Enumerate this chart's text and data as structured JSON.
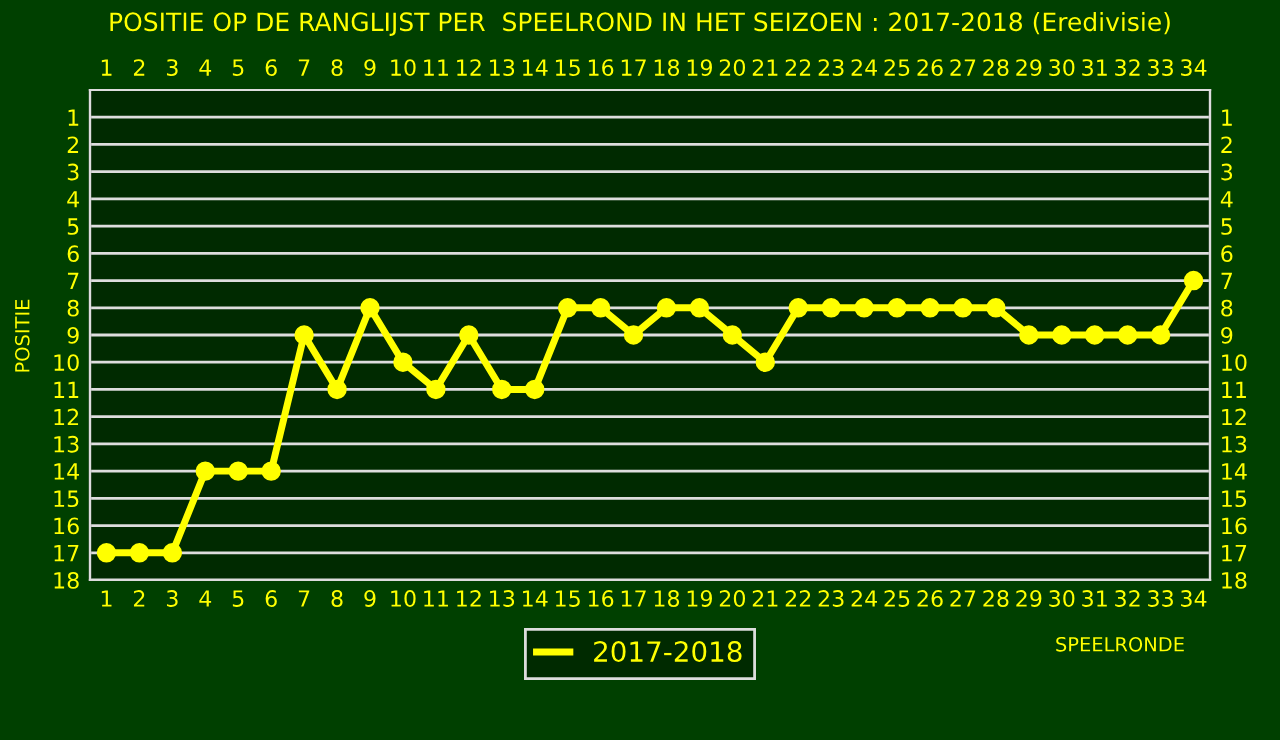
{
  "chart_data": {
    "type": "line",
    "title": "POSITIE OP DE RANGLIJST PER  SPEELROND IN HET SEIZOEN : 2017-2018 (Eredivisie)",
    "xlabel": "SPEELRONDE",
    "ylabel": "POSITIE",
    "x": [
      1,
      2,
      3,
      4,
      5,
      6,
      7,
      8,
      9,
      10,
      11,
      12,
      13,
      14,
      15,
      16,
      17,
      18,
      19,
      20,
      21,
      22,
      23,
      24,
      25,
      26,
      27,
      28,
      29,
      30,
      31,
      32,
      33,
      34
    ],
    "series": [
      {
        "name": "2017-2018",
        "color": "#ffff00",
        "values": [
          17,
          17,
          17,
          14,
          14,
          14,
          9,
          11,
          8,
          10,
          11,
          9,
          11,
          11,
          8,
          8,
          9,
          8,
          8,
          9,
          10,
          8,
          8,
          8,
          8,
          8,
          8,
          8,
          9,
          9,
          9,
          9,
          9,
          7
        ]
      }
    ],
    "xlim": [
      0.5,
      34.5
    ],
    "xticks": [
      1,
      2,
      3,
      4,
      5,
      6,
      7,
      8,
      9,
      10,
      11,
      12,
      13,
      14,
      15,
      16,
      17,
      18,
      19,
      20,
      21,
      22,
      23,
      24,
      25,
      26,
      27,
      28,
      29,
      30,
      31,
      32,
      33,
      34
    ],
    "x2lim": [
      0.5,
      34.5
    ],
    "x2ticks": [
      1,
      2,
      3,
      4,
      5,
      6,
      7,
      8,
      9,
      10,
      11,
      12,
      13,
      14,
      15,
      16,
      17,
      18,
      19,
      20,
      21,
      22,
      23,
      24,
      25,
      26,
      27,
      28,
      29,
      30,
      31,
      32,
      33,
      34
    ],
    "ylim": [
      18,
      0
    ],
    "yticks": [
      1,
      2,
      3,
      4,
      5,
      6,
      7,
      8,
      9,
      10,
      11,
      12,
      13,
      14,
      15,
      16,
      17,
      18
    ],
    "y2lim": [
      18,
      0
    ],
    "y2ticks": [
      1,
      2,
      3,
      4,
      5,
      6,
      7,
      8,
      9,
      10,
      11,
      12,
      13,
      14,
      15,
      16,
      17,
      18
    ],
    "grid": "y",
    "legend": "bottom",
    "marker": "circle",
    "line_style": "solid"
  }
}
